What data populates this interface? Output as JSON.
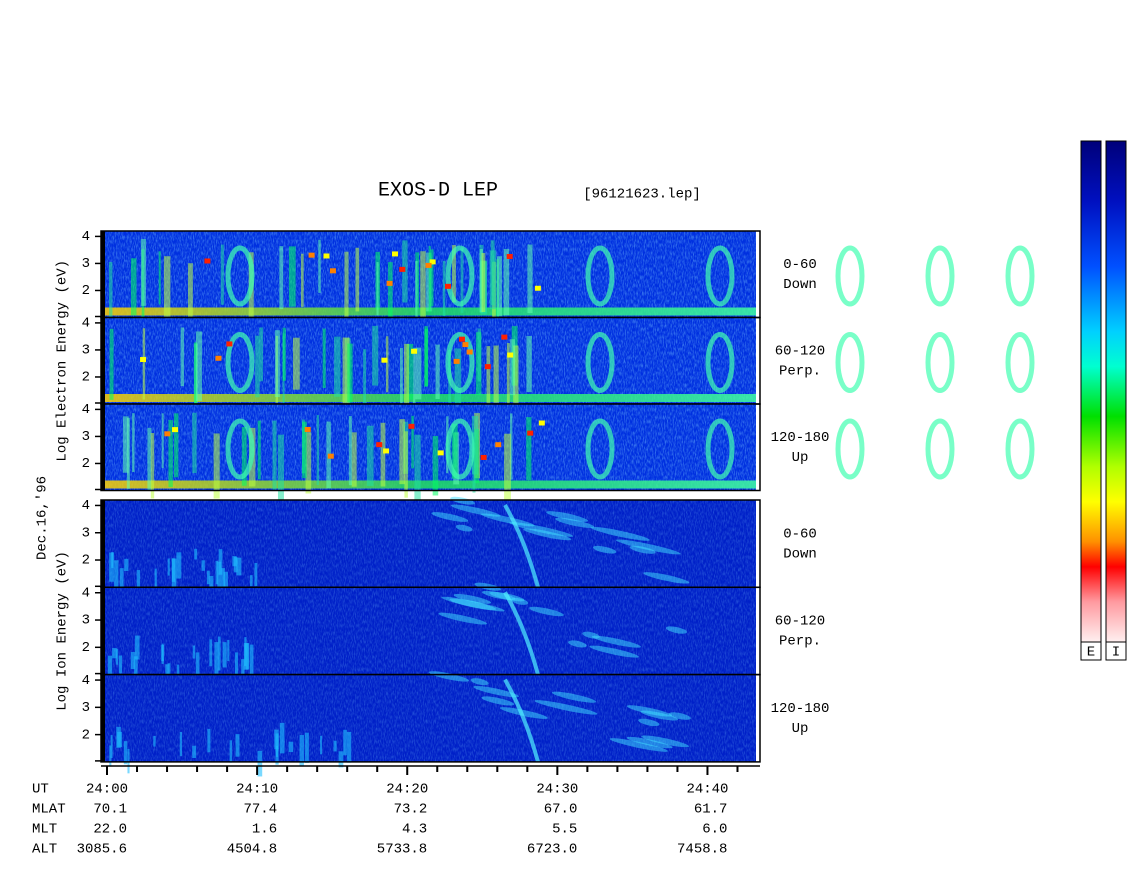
{
  "chart_data": {
    "type": "spectrogram",
    "title": "EXOS-D LEP",
    "subtitle": "[96121623.lep]",
    "date_label": "Dec.16,'96",
    "xlim": [
      0,
      43.5
    ],
    "xticks": [
      {
        "value": 0,
        "label": "24:00"
      },
      {
        "value": 10,
        "label": "24:10"
      },
      {
        "value": 20,
        "label": "24:20"
      },
      {
        "value": 30,
        "label": "24:30"
      },
      {
        "value": 40,
        "label": "24:40"
      }
    ],
    "ylim": [
      1,
      4.2
    ],
    "yticks": [
      2,
      3,
      4
    ],
    "groups": [
      {
        "name": "Log Electron Energy (eV)",
        "panels": [
          [
            "0-60",
            "Down"
          ],
          [
            "60-120",
            "Perp."
          ],
          [
            "120-180",
            "Up"
          ]
        ]
      },
      {
        "name": "Log Ion Energy (eV)",
        "panels": [
          [
            "0-60",
            "Down"
          ],
          [
            "60-120",
            "Perp."
          ],
          [
            "120-180",
            "Up"
          ]
        ]
      }
    ],
    "ephemeris": {
      "ut_label": "UT",
      "rows": [
        {
          "name": "MLAT",
          "values": [
            "70.1",
            "77.4",
            "73.2",
            "67.0",
            "61.7"
          ]
        },
        {
          "name": "MLT",
          "values": [
            "22.0",
            "1.6",
            "4.3",
            "5.5",
            "6.0"
          ]
        },
        {
          "name": "ALT",
          "values": [
            "3085.6",
            "4504.8",
            "5733.8",
            "6723.0",
            "7458.8"
          ]
        }
      ]
    },
    "colorbar_labels": [
      "E",
      "I"
    ]
  }
}
